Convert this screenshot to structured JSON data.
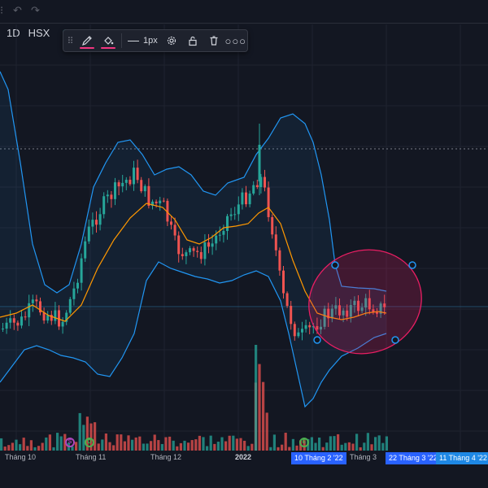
{
  "header": {
    "undo_icon": "undo-icon",
    "redo_icon": "redo-icon"
  },
  "symbol_bar": {
    "interval": "1D",
    "exchange": "HSX",
    "status_color": "#26a69a"
  },
  "drawing_toolbar": {
    "tools": [
      "brush-icon",
      "fill-color-icon",
      "line-width",
      "settings-icon",
      "lock-icon",
      "trash-icon",
      "more-icon"
    ],
    "brush_color": "#f23680",
    "fill_color": "#f23680",
    "line_width_label": "1px"
  },
  "x_axis": {
    "labels": [
      "Tháng 10",
      "Tháng 11",
      "Tháng 12",
      "2022",
      "Tháng 3"
    ],
    "highlighted_range": [
      "10 Tháng 2 '22",
      "22 Tháng 3 '22",
      "11 Tháng 4 '22"
    ]
  },
  "markers": [
    {
      "letter": "S",
      "color": "#ab47bc"
    },
    {
      "letter": "D",
      "color": "#4caf50"
    },
    {
      "letter": "E",
      "color": "#4caf50"
    }
  ],
  "colors": {
    "up": "#26a69a",
    "down": "#ef5350",
    "bollinger_band": "#2196f3",
    "bollinger_basis": "#ff9800",
    "ellipse": "#e91e63"
  }
}
